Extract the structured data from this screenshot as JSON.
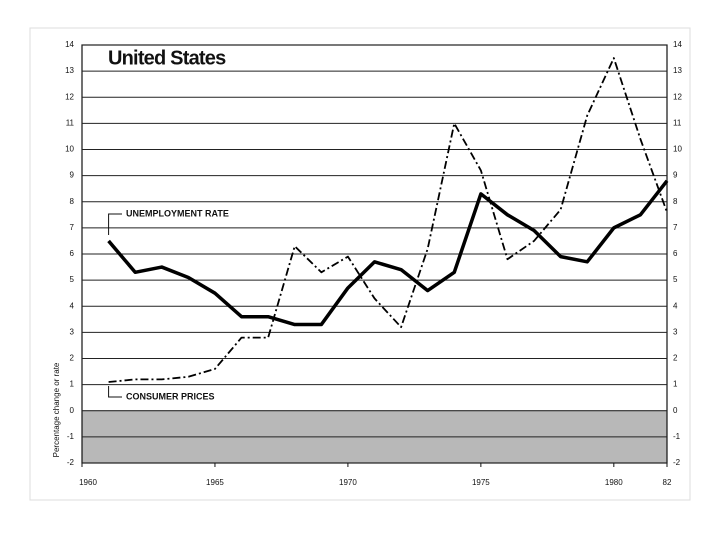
{
  "chart_data": {
    "type": "line",
    "title": "United States",
    "y_label": "Percentage change or rate",
    "x": [
      1961,
      1962,
      1963,
      1964,
      1965,
      1966,
      1967,
      1968,
      1969,
      1970,
      1971,
      1972,
      1973,
      1974,
      1975,
      1976,
      1977,
      1978,
      1979,
      1980,
      1981,
      1982
    ],
    "series": [
      {
        "name": "UNEMPLOYMENT RATE",
        "color": "#000000",
        "style": "solid",
        "values": [
          6.5,
          5.3,
          5.5,
          5.1,
          4.5,
          3.6,
          3.6,
          3.3,
          3.3,
          4.7,
          5.7,
          5.4,
          4.6,
          5.3,
          8.3,
          7.5,
          6.9,
          5.9,
          5.7,
          7.0,
          7.5,
          8.8
        ]
      },
      {
        "name": "CONSUMER PRICES",
        "color": "#000000",
        "style": "dashdot",
        "values": [
          1.1,
          1.2,
          1.2,
          1.3,
          1.6,
          2.8,
          2.8,
          6.3,
          5.3,
          5.9,
          4.3,
          3.2,
          6.2,
          11.0,
          9.2,
          5.8,
          6.5,
          7.7,
          11.3,
          13.5,
          10.4,
          7.6
        ]
      }
    ],
    "xlim": [
      1960,
      1982
    ],
    "xticks": [
      1960,
      1965,
      1970,
      1975,
      1980,
      {
        "value": 1982,
        "label": "82"
      }
    ],
    "ylim": [
      -2,
      14
    ],
    "yticks": [
      -2,
      -1,
      0,
      1,
      2,
      3,
      4,
      5,
      6,
      7,
      8,
      9,
      10,
      11,
      12,
      13,
      14
    ],
    "grid": true
  }
}
